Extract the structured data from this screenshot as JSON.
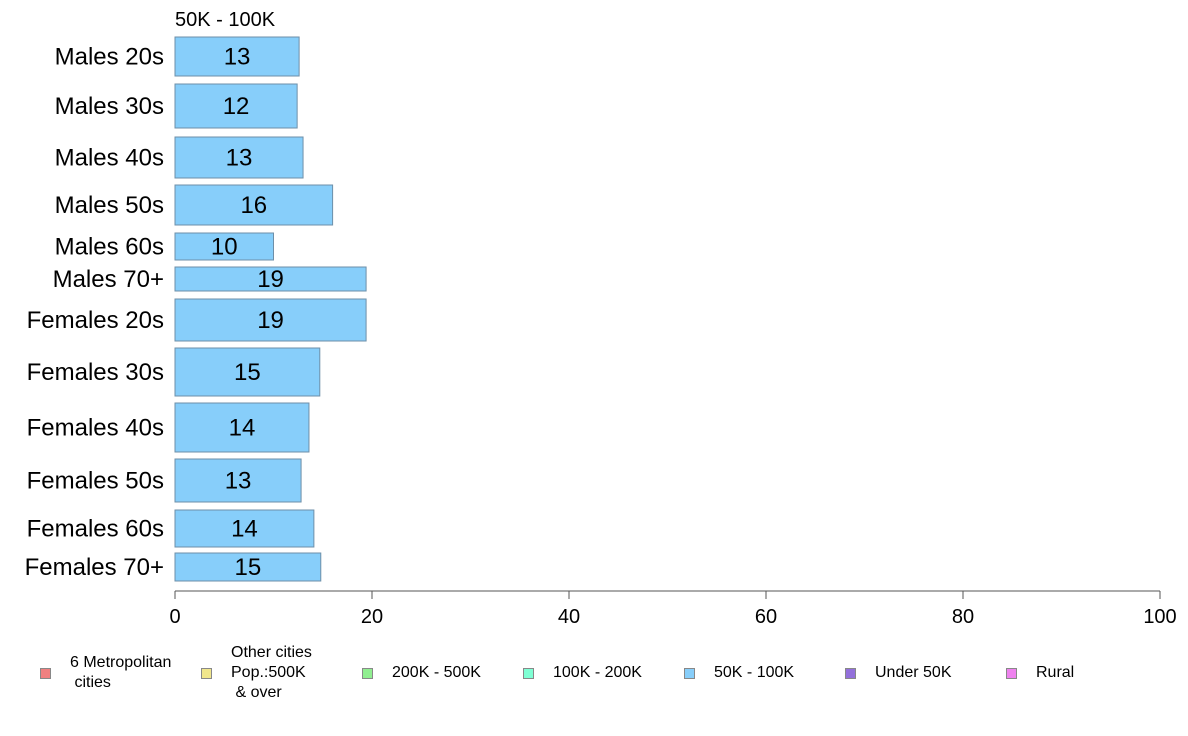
{
  "chart_data": {
    "type": "bar",
    "orientation": "horizontal",
    "title": "50K - 100K",
    "categories": [
      "Males 20s",
      "Males 30s",
      "Males 40s",
      "Males 50s",
      "Males 60s",
      "Males 70+",
      "Females 20s",
      "Females 30s",
      "Females 40s",
      "Females 50s",
      "Females 60s",
      "Females 70+"
    ],
    "values": [
      12.6,
      12.4,
      13.0,
      16.0,
      10.0,
      19.4,
      19.4,
      14.7,
      13.6,
      12.8,
      14.1,
      14.8
    ],
    "value_labels": [
      "13",
      "12",
      "13",
      "16",
      "10",
      "19",
      "19",
      "15",
      "14",
      "13",
      "14",
      "15"
    ],
    "xlim": [
      0,
      100
    ],
    "xticks": [
      "0",
      "20",
      "40",
      "60",
      "80",
      "100"
    ],
    "bar_color": "#87CEFA",
    "grid": false,
    "legend_position": "bottom",
    "legend": [
      {
        "label": "6 Metropolitan\n cities",
        "color": "#F08080"
      },
      {
        "label": "Other cities\nPop.:500K\n & over",
        "color": "#F0E68C"
      },
      {
        "label": "200K - 500K",
        "color": "#90EE90"
      },
      {
        "label": "100K - 200K",
        "color": "#7FFFD4"
      },
      {
        "label": "50K - 100K",
        "color": "#87CEFA"
      },
      {
        "label": "Under 50K",
        "color": "#9370DB"
      },
      {
        "label": "Rural",
        "color": "#EE82EE"
      }
    ]
  }
}
